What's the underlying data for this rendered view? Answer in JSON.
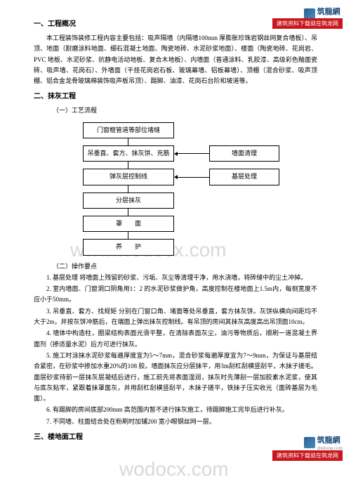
{
  "logo": {
    "brand": "筑龍網",
    "domain": "zhulong.com",
    "banner": "建筑资料下载就在筑龙网"
  },
  "watermark": "www.wodocx.com",
  "watermark2": "wodocx.com",
  "sec1": {
    "title": "一、工程概况",
    "p1": "本工程装饰装修工程内容主要包括：吸声隔墙（内隔墙100mm 厚膨胀珍珠岩钢丝网复合墙板）、吊顶、地面（耐磨涂料地面、细石混凝土地面、陶瓷地砖、水泥砂浆地面）、楼面（陶瓷地砖、花岗岩、PVC 地板、水泥砂浆、抗静电活动地板、复合木地板）、内墙面（普通涂料、乳胶漆、高级彩色釉面瓷砖、吸声墙、花岗石）、外墙面（干挂花岗岩石板、玻璃幕墙、铝板幕墙）、顶棚（混合砂浆、吸声顶棚、铝合金龙骨玻璃棉装饰吸声板吊顶）、踢脚、油漆、花岗石台阶和坡道等。"
  },
  "sec2": {
    "title": "二、抹灰工程",
    "sub1": "（一）工艺流程",
    "flow": {
      "n1": "门窗框管道等部位堵缝",
      "n2": "吊垂直、套方、抹灰饼、充筋",
      "n3": "弹灰层控制线",
      "n4": "分层抹灰",
      "n5": "罩　　面",
      "n6": "养　　护",
      "r1": "墙面清理",
      "r2": "基层处理"
    },
    "sub2": "（二）操作要点",
    "p1": "1. 基层处理 将墙面上残留的砂浆、污垢、灰尘等清理干净，用水浇墙，将砖缝中的尘土冲掉。",
    "p2": "2. 室内墙面、门窗洞口阴角用1：2 的水泥砂浆做护角，高度控制在楼地面上1.5m内，每侧宽度不应小于50mm。",
    "p3": "3. 吊垂直、套方、找规矩 分别在门窗口角、堵面等处吊垂直，套方抹灰饼。灰饼纵横向间距均不大于2m，并按灰饼冲筋后，在端面上弹出抹灰控制线。有吊顶的房间其抹灰高度高出吊顶面10cm。",
    "p4": "4. 墙体中构造柱，圈梁结构表面光滑平整，在清除表面灰尘，油污等物质后，顺刷一道混凝土界面剂（掺适量水泥）后方可进行抹灰。",
    "p5": "5. 施工时涂抹水泥砂浆每遍厚度宜为5～7mm，混合砂浆每遍厚度宜为7～9mm，为保证与基层结合紧密，在砂浆中掺加水重20%的108 胶。墙面抹灰应分层抹平，用3m刮杠刮横竖刮平，木抹子搓毛。面层砂浆待前一层抹灰层凝结后进行，施工前先将表面湿润，抹灰时先薄刮一层加胶素水泥浆，使其与底灰粘牢，紧跟着抹罩面灰，并用刮杠刮横竖刮平，木抹子搓平，铁抹子压实收光（面砖基层为毛面）。",
    "p6": "6. 有踢脚的房间底部200mm 高范围内暂不进行抹灰施工，待踢脚施工完毕后进行补灰。",
    "p7": "7. 不同墙、柱面结合处在粉刷时加铺200 宽小眼钢丝网一层。"
  },
  "sec3": {
    "title": "三、楼地面工程"
  },
  "colors": {
    "bannerBg": "#c8171e",
    "logoColor": "#1a4a7a",
    "text": "#000000",
    "watermark": "#d8d8d8"
  }
}
